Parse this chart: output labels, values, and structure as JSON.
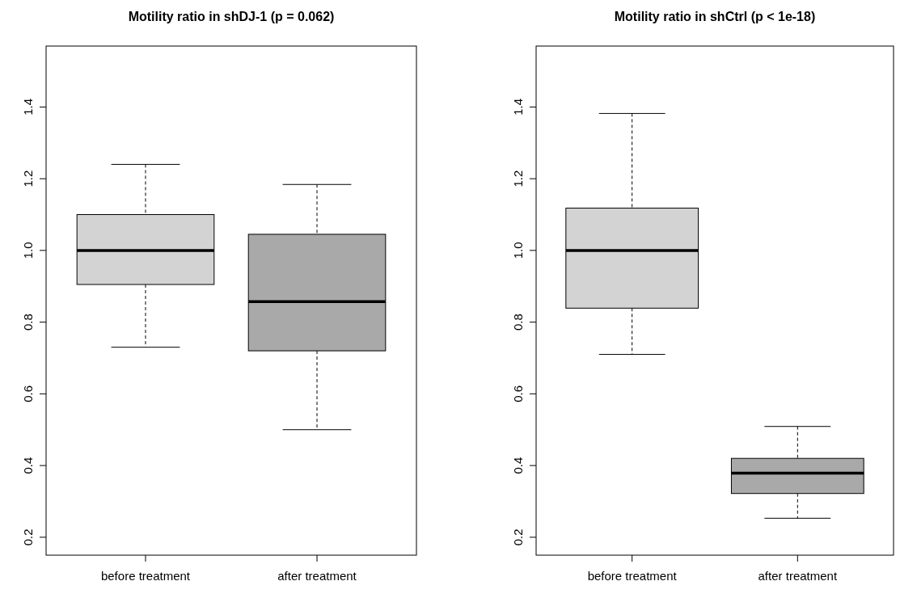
{
  "chart_data": [
    {
      "type": "box",
      "title": "Motility ratio in shDJ-1 (p = 0.062)",
      "categories": [
        "before treatment",
        "after treatment"
      ],
      "colors": [
        "#d3d3d3",
        "#a9a9a9"
      ],
      "boxes": [
        {
          "low": 0.73,
          "q1": 0.905,
          "median": 1.0,
          "q3": 1.1,
          "high": 1.24
        },
        {
          "low": 0.5,
          "q1": 0.72,
          "median": 0.857,
          "q3": 1.045,
          "high": 1.184
        }
      ],
      "ylim": [
        0.15,
        1.57
      ],
      "yticks": [
        0.2,
        0.4,
        0.6,
        0.8,
        {
          "value": 1,
          "label": "1.0"
        },
        1.2,
        1.4
      ],
      "grid": false
    },
    {
      "type": "box",
      "title": "Motility ratio in shCtrl (p < 1e-18)",
      "categories": [
        "before treatment",
        "after treatment"
      ],
      "colors": [
        "#d3d3d3",
        "#a9a9a9"
      ],
      "boxes": [
        {
          "low": 0.71,
          "q1": 0.839,
          "median": 1.0,
          "q3": 1.118,
          "high": 1.382
        },
        {
          "low": 0.253,
          "q1": 0.322,
          "median": 0.379,
          "q3": 0.42,
          "high": 0.509
        }
      ],
      "ylim": [
        0.15,
        1.57
      ],
      "yticks": [
        0.2,
        0.4,
        0.6,
        0.8,
        {
          "value": 1,
          "label": "1.0"
        },
        1.2,
        1.4
      ],
      "grid": false
    }
  ]
}
